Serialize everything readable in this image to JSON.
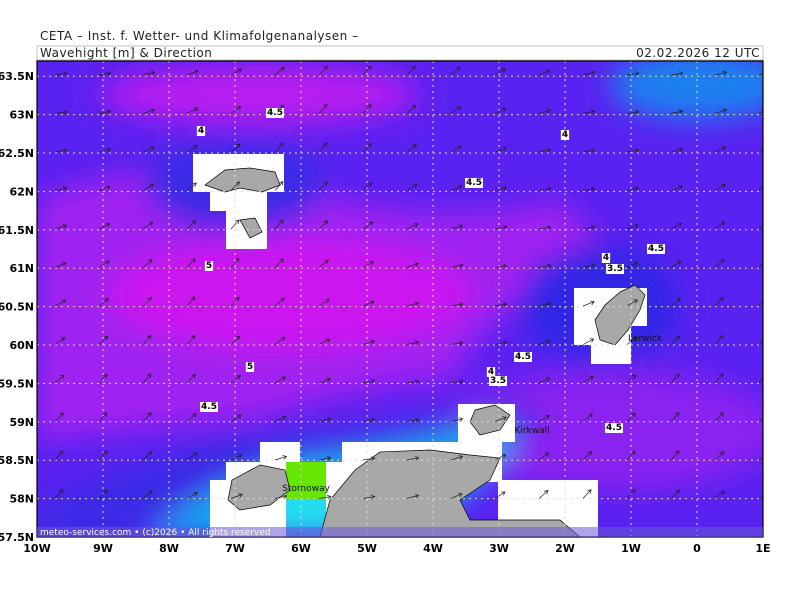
{
  "header": {
    "institute": "CETA – Inst. f. Wetter- und Klimafolgenanalysen –",
    "title": "Wavehight [m] & Direction",
    "datetime": "02.02.2026 12 UTC"
  },
  "lat_ticks": [
    {
      "value": 63.5,
      "label": "63.5N"
    },
    {
      "value": 63,
      "label": "63N"
    },
    {
      "value": 62.5,
      "label": "62.5N"
    },
    {
      "value": 62,
      "label": "62N"
    },
    {
      "value": 61.5,
      "label": "61.5N"
    },
    {
      "value": 61,
      "label": "61N"
    },
    {
      "value": 60.5,
      "label": "60.5N"
    },
    {
      "value": 60,
      "label": "60N"
    },
    {
      "value": 59.5,
      "label": "59.5N"
    },
    {
      "value": 59,
      "label": "59N"
    },
    {
      "value": 58.5,
      "label": "58.5N"
    },
    {
      "value": 58,
      "label": "58N"
    },
    {
      "value": 57.5,
      "label": "57.5N"
    }
  ],
  "lon_ticks": [
    {
      "value": -10,
      "label": "10W"
    },
    {
      "value": -9,
      "label": "9W"
    },
    {
      "value": -8,
      "label": "8W"
    },
    {
      "value": -7,
      "label": "7W"
    },
    {
      "value": -6,
      "label": "6W"
    },
    {
      "value": -5,
      "label": "5W"
    },
    {
      "value": -4,
      "label": "4W"
    },
    {
      "value": -3,
      "label": "3W"
    },
    {
      "value": -2,
      "label": "2W"
    },
    {
      "value": -1,
      "label": "1W"
    },
    0,
    {
      "value": 1,
      "label": "1E"
    }
  ],
  "contour_labels": [
    "4.5",
    "4",
    "4",
    "4.5",
    "4",
    "4.5",
    "3.5",
    "5",
    "4.5",
    "5",
    "4",
    "3.5",
    "4.5",
    "4.5"
  ],
  "places": [
    "Stornoway",
    "Lerwick",
    "Kirkwall"
  ],
  "footer": "meteo-services.com • (c)2026 • All rights reserved"
}
